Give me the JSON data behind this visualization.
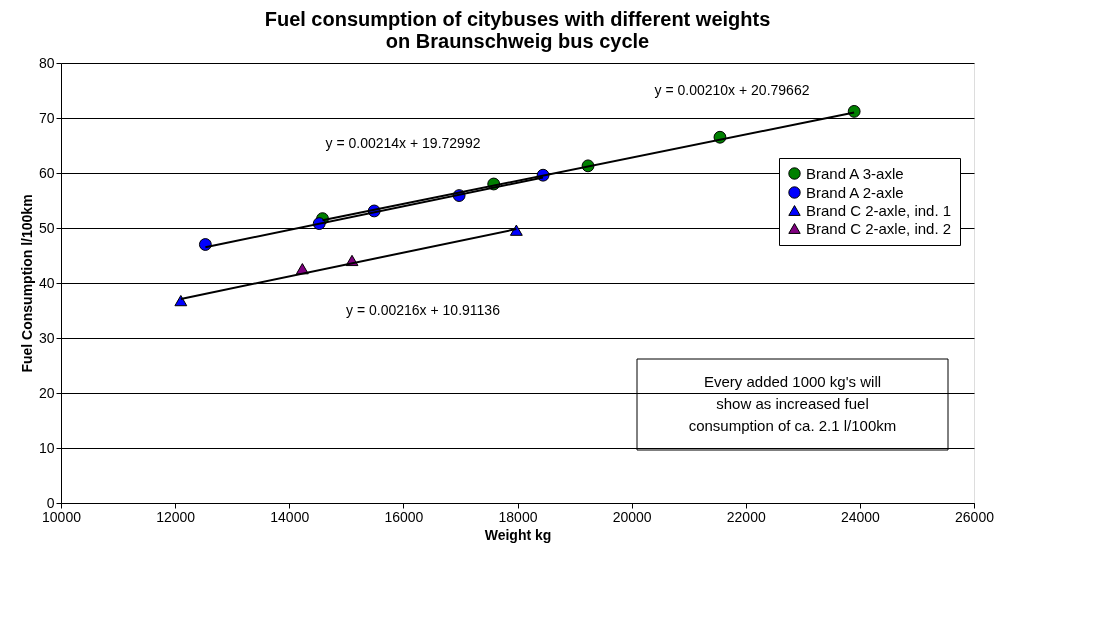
{
  "chart_data": {
    "type": "scatter",
    "title": [
      "Fuel consumption of citybuses with different weights",
      "on Braunschweig bus cycle"
    ],
    "xlabel": "Weight kg",
    "ylabel": "Fuel Consumption l/100km",
    "series": [
      {
        "name": "Brand A 3-axle",
        "color": "#008000",
        "marker": "circle",
        "x": [
          14583,
          17583,
          19236,
          21548,
          23900
        ],
        "values": [
          51.7,
          58.0,
          61.3,
          66.5,
          71.2
        ]
      },
      {
        "name": "Brand A 2-axle",
        "color": "#0000ff",
        "marker": "circle",
        "x": [
          12530,
          14525,
          15489,
          16977,
          18448
        ],
        "values": [
          47.0,
          50.8,
          53.1,
          55.9,
          59.6
        ]
      },
      {
        "name": "Brand C 2-axle, ind. 1",
        "color": "#0000ff",
        "marker": "triangle",
        "x": [
          12100,
          17980
        ],
        "values": [
          36.8,
          49.6
        ]
      },
      {
        "name": "Brand C 2-axle, ind. 2",
        "color": "#800080",
        "marker": "triangle",
        "x": [
          14230,
          15100
        ],
        "values": [
          42.6,
          44.1
        ]
      },
      {
        "type": "line",
        "color": "#000000",
        "x": [
          14583,
          23900
        ],
        "values": [
          51.4,
          71.0
        ]
      },
      {
        "type": "line",
        "color": "#000000",
        "x": [
          12530,
          18448
        ],
        "values": [
          46.5,
          59.2
        ]
      },
      {
        "type": "line",
        "color": "#000000",
        "x": [
          12100,
          17980
        ],
        "values": [
          37.1,
          49.8
        ]
      }
    ],
    "xlim": [
      10000,
      26000
    ],
    "xticks": [
      10000,
      12000,
      14000,
      16000,
      18000,
      20000,
      22000,
      24000,
      26000
    ],
    "ylim": [
      0,
      80
    ],
    "yticks": [
      0,
      10,
      20,
      30,
      40,
      50,
      60,
      70,
      80
    ],
    "grid": "y",
    "legend": "top right",
    "annotations": [
      "y = 0.00210x + 20.79662",
      "y = 0.00214x + 19.72992",
      "y = 0.00216x + 10.91136",
      "Every added 1000 kg's will show as increased fuel consumption of ca. 2.1 l/100km"
    ]
  }
}
